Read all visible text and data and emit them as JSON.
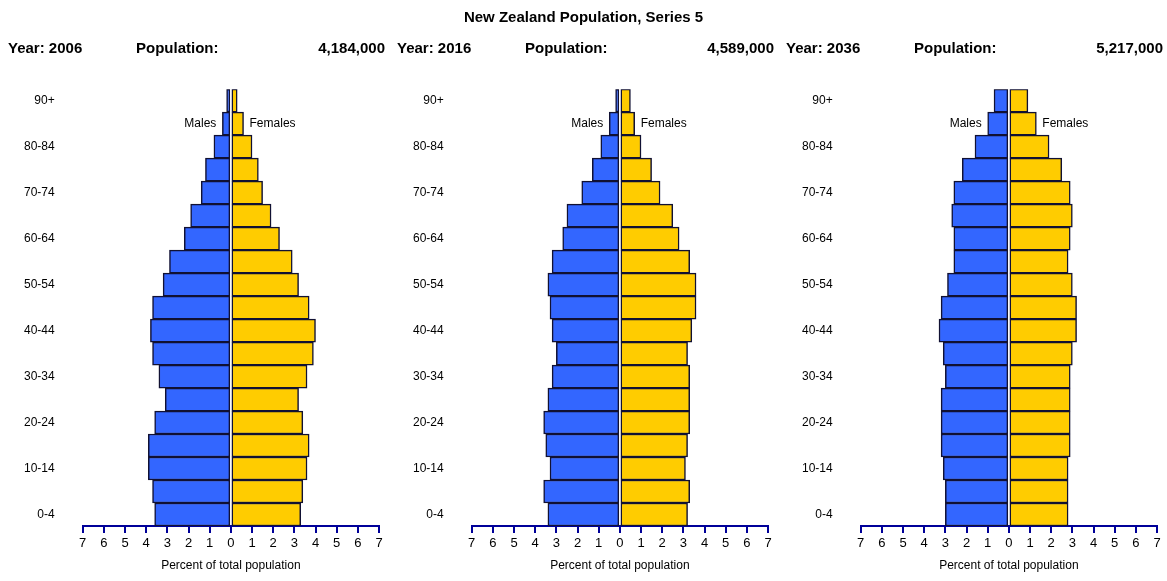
{
  "chart_data": [
    {
      "type": "other",
      "title": "New Zealand Population, Series 5"
    },
    {
      "type": "bar",
      "orientation": "horizontal",
      "stacked": true,
      "title": "Year: 2006",
      "subtitle": "Population:",
      "annotations": [
        "4,184,000"
      ],
      "xlabel": "Percent of total population",
      "categories": [
        "90+",
        null,
        "80-84",
        null,
        "70-74",
        null,
        "60-64",
        null,
        "50-54",
        null,
        "40-44",
        null,
        "30-34",
        null,
        "20-24",
        null,
        "10-14",
        null,
        "0-4"
      ],
      "xlim": [
        -7,
        7
      ],
      "xticks": [
        {
          "value": -7,
          "label": "7"
        },
        {
          "value": -6,
          "label": "6"
        },
        {
          "value": -5,
          "label": "5"
        },
        {
          "value": -4,
          "label": "4"
        },
        {
          "value": -3,
          "label": "3"
        },
        {
          "value": -2,
          "label": "2"
        },
        {
          "value": -1,
          "label": "1"
        },
        0,
        1,
        2,
        3,
        4,
        5,
        6,
        7
      ],
      "series": [
        {
          "name": "Males",
          "color": "#3366ff",
          "values": [
            -0.2,
            -0.4,
            -0.8,
            -1.2,
            -1.4,
            -1.9,
            -2.2,
            -2.9,
            -3.2,
            -3.7,
            -3.8,
            -3.7,
            -3.4,
            -3.1,
            -3.6,
            -3.9,
            -3.9,
            -3.7,
            -3.6
          ]
        },
        {
          "name": "Females",
          "color": "#ffcc00",
          "values": [
            0.3,
            0.6,
            1.0,
            1.3,
            1.5,
            1.9,
            2.3,
            2.9,
            3.2,
            3.7,
            4.0,
            3.9,
            3.6,
            3.2,
            3.4,
            3.7,
            3.6,
            3.4,
            3.3
          ]
        }
      ]
    },
    {
      "type": "bar",
      "orientation": "horizontal",
      "stacked": true,
      "title": "Year: 2016",
      "subtitle": "Population:",
      "annotations": [
        "4,589,000"
      ],
      "xlabel": "Percent of total population",
      "categories": [
        "90+",
        null,
        "80-84",
        null,
        "70-74",
        null,
        "60-64",
        null,
        "50-54",
        null,
        "40-44",
        null,
        "30-34",
        null,
        "20-24",
        null,
        "10-14",
        null,
        "0-4"
      ],
      "xlim": [
        -7,
        7
      ],
      "xticks": [
        {
          "value": -7,
          "label": "7"
        },
        {
          "value": -6,
          "label": "6"
        },
        {
          "value": -5,
          "label": "5"
        },
        {
          "value": -4,
          "label": "4"
        },
        {
          "value": -3,
          "label": "3"
        },
        {
          "value": -2,
          "label": "2"
        },
        {
          "value": -1,
          "label": "1"
        },
        0,
        1,
        2,
        3,
        4,
        5,
        6,
        7
      ],
      "series": [
        {
          "name": "Males",
          "color": "#3366ff",
          "values": [
            -0.2,
            -0.5,
            -0.9,
            -1.3,
            -1.8,
            -2.5,
            -2.7,
            -3.2,
            -3.4,
            -3.3,
            -3.2,
            -3.0,
            -3.2,
            -3.4,
            -3.6,
            -3.5,
            -3.3,
            -3.6,
            -3.4
          ]
        },
        {
          "name": "Females",
          "color": "#ffcc00",
          "values": [
            0.5,
            0.7,
            1.0,
            1.5,
            1.9,
            2.5,
            2.8,
            3.3,
            3.6,
            3.6,
            3.4,
            3.2,
            3.3,
            3.3,
            3.3,
            3.2,
            3.1,
            3.3,
            3.2
          ]
        }
      ]
    },
    {
      "type": "bar",
      "orientation": "horizontal",
      "stacked": true,
      "title": "Year: 2036",
      "subtitle": "Population:",
      "annotations": [
        "5,217,000"
      ],
      "xlabel": "Percent of total population",
      "categories": [
        "90+",
        null,
        "80-84",
        null,
        "70-74",
        null,
        "60-64",
        null,
        "50-54",
        null,
        "40-44",
        null,
        "30-34",
        null,
        "20-24",
        null,
        "10-14",
        null,
        "0-4"
      ],
      "xlim": [
        -7,
        7
      ],
      "xticks": [
        {
          "value": -7,
          "label": "7"
        },
        {
          "value": -6,
          "label": "6"
        },
        {
          "value": -5,
          "label": "5"
        },
        {
          "value": -4,
          "label": "4"
        },
        {
          "value": -3,
          "label": "3"
        },
        {
          "value": -2,
          "label": "2"
        },
        {
          "value": -1,
          "label": "1"
        },
        0,
        1,
        2,
        3,
        4,
        5,
        6,
        7
      ],
      "series": [
        {
          "name": "Males",
          "color": "#3366ff",
          "values": [
            -0.7,
            -1.0,
            -1.6,
            -2.2,
            -2.6,
            -2.7,
            -2.6,
            -2.6,
            -2.9,
            -3.2,
            -3.3,
            -3.1,
            -3.0,
            -3.2,
            -3.2,
            -3.2,
            -3.1,
            -3.0,
            -3.0
          ]
        },
        {
          "name": "Females",
          "color": "#ffcc00",
          "values": [
            0.9,
            1.3,
            1.9,
            2.5,
            2.9,
            3.0,
            2.9,
            2.8,
            3.0,
            3.2,
            3.2,
            3.0,
            2.9,
            2.9,
            2.9,
            2.9,
            2.8,
            2.8,
            2.8
          ]
        }
      ]
    }
  ]
}
